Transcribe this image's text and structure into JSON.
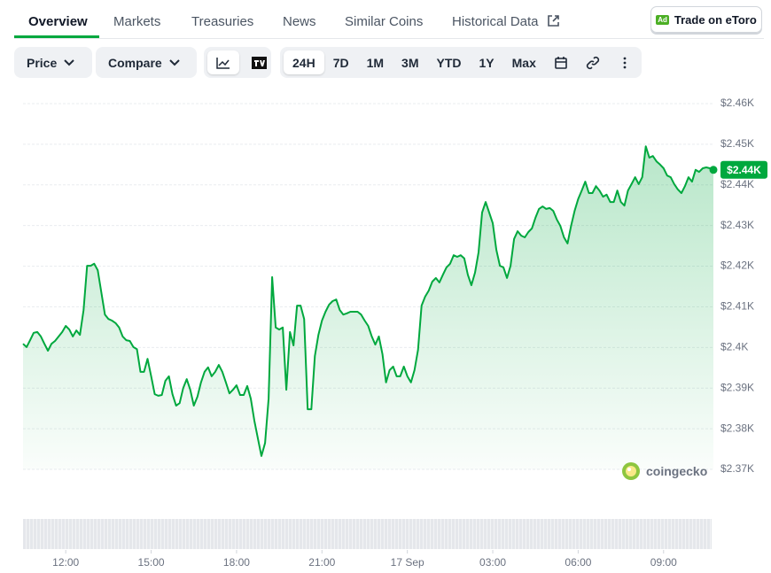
{
  "tabs": [
    "Overview",
    "Markets",
    "Treasuries",
    "News",
    "Similar Coins",
    "Historical Data"
  ],
  "ad_button": {
    "badge": "Ad",
    "label": "Trade on eToro"
  },
  "toolbar": {
    "price": "Price",
    "compare": "Compare",
    "ranges": [
      "24H",
      "7D",
      "1M",
      "3M",
      "YTD",
      "1Y",
      "Max"
    ]
  },
  "watermark": "coingecko",
  "chart_data": {
    "type": "area",
    "color": "#00a83e",
    "grid": true,
    "current_label": "$2.44K",
    "xlim": [
      10.5,
      34.75
    ],
    "xticks": [
      {
        "value": 12,
        "label": "12:00"
      },
      {
        "value": 15,
        "label": "15:00"
      },
      {
        "value": 18,
        "label": "18:00"
      },
      {
        "value": 21,
        "label": "21:00"
      },
      {
        "value": 24,
        "label": "17 Sep"
      },
      {
        "value": 27,
        "label": "03:00"
      },
      {
        "value": 30,
        "label": "06:00"
      },
      {
        "value": 33,
        "label": "09:00"
      }
    ],
    "ylim": [
      2370,
      2460
    ],
    "yticks": [
      {
        "value": 2370,
        "label": "$2.37K"
      },
      {
        "value": 2380,
        "label": "$2.38K"
      },
      {
        "value": 2390,
        "label": "$2.39K"
      },
      {
        "value": 2400,
        "label": "$2.4K"
      },
      {
        "value": 2410,
        "label": "$2.41K"
      },
      {
        "value": 2420,
        "label": "$2.42K"
      },
      {
        "value": 2430,
        "label": "$2.43K"
      },
      {
        "value": 2440,
        "label": "$2.44K"
      },
      {
        "value": 2450,
        "label": "$2.45K"
      },
      {
        "value": 2460,
        "label": "$2.46K"
      }
    ],
    "x": [
      10.5,
      10.625,
      10.75,
      10.875,
      11,
      11.125,
      11.25,
      11.375,
      11.5,
      11.625,
      11.75,
      11.875,
      12,
      12.125,
      12.25,
      12.375,
      12.5,
      12.625,
      12.75,
      12.875,
      13,
      13.125,
      13.25,
      13.375,
      13.5,
      13.625,
      13.75,
      13.875,
      14,
      14.125,
      14.25,
      14.375,
      14.5,
      14.625,
      14.75,
      14.875,
      15,
      15.125,
      15.25,
      15.375,
      15.5,
      15.625,
      15.75,
      15.875,
      16,
      16.125,
      16.25,
      16.375,
      16.5,
      16.625,
      16.75,
      16.875,
      17,
      17.125,
      17.25,
      17.375,
      17.5,
      17.625,
      17.75,
      17.875,
      18,
      18.125,
      18.25,
      18.375,
      18.5,
      18.625,
      18.75,
      18.875,
      19,
      19.125,
      19.25,
      19.375,
      19.5,
      19.625,
      19.75,
      19.875,
      20,
      20.125,
      20.25,
      20.375,
      20.5,
      20.625,
      20.75,
      20.875,
      21,
      21.125,
      21.25,
      21.375,
      21.5,
      21.625,
      21.75,
      21.875,
      22,
      22.125,
      22.25,
      22.375,
      22.5,
      22.625,
      22.75,
      22.875,
      23,
      23.125,
      23.25,
      23.375,
      23.5,
      23.625,
      23.75,
      23.875,
      24,
      24.125,
      24.25,
      24.375,
      24.5,
      24.625,
      24.75,
      24.875,
      25,
      25.125,
      25.25,
      25.375,
      25.5,
      25.625,
      25.75,
      25.875,
      26,
      26.125,
      26.25,
      26.375,
      26.5,
      26.625,
      26.75,
      26.875,
      27,
      27.125,
      27.25,
      27.375,
      27.5,
      27.625,
      27.75,
      27.875,
      28,
      28.125,
      28.25,
      28.375,
      28.5,
      28.625,
      28.75,
      28.875,
      29,
      29.125,
      29.25,
      29.375,
      29.5,
      29.625,
      29.75,
      29.875,
      30,
      30.125,
      30.25,
      30.375,
      30.5,
      30.625,
      30.75,
      30.875,
      31,
      31.125,
      31.25,
      31.375,
      31.5,
      31.625,
      31.75,
      31.875,
      32,
      32.125,
      32.25,
      32.375,
      32.5,
      32.625,
      32.75,
      32.875,
      33,
      33.125,
      33.25,
      33.375,
      33.5,
      33.625,
      33.75,
      33.875,
      34,
      34.125,
      34.25,
      34.375,
      34.5,
      34.625,
      34.75
    ],
    "values": [
      2400.9,
      2400.1,
      2401.8,
      2403.6,
      2403.8,
      2402.7,
      2400.9,
      2399.2,
      2400.9,
      2401.6,
      2402.7,
      2403.8,
      2405.3,
      2404.4,
      2402.7,
      2404.2,
      2403.1,
      2409.2,
      2420.1,
      2420.1,
      2420.6,
      2419.0,
      2413.6,
      2408.1,
      2407.0,
      2406.6,
      2406.0,
      2404.9,
      2402.7,
      2401.8,
      2401.6,
      2400.1,
      2399.6,
      2394.0,
      2394.0,
      2397.2,
      2392.9,
      2388.5,
      2388.1,
      2388.3,
      2391.8,
      2392.9,
      2388.5,
      2385.7,
      2386.3,
      2390.0,
      2392.2,
      2389.6,
      2385.7,
      2387.9,
      2391.4,
      2394.0,
      2395.1,
      2392.9,
      2394.0,
      2395.7,
      2394.0,
      2391.4,
      2388.7,
      2389.6,
      2390.7,
      2388.3,
      2388.3,
      2390.5,
      2387.4,
      2382.0,
      2377.6,
      2373.3,
      2376.5,
      2387.4,
      2417.3,
      2404.9,
      2404.4,
      2404.9,
      2389.6,
      2403.8,
      2400.5,
      2410.3,
      2410.3,
      2407.0,
      2384.8,
      2384.8,
      2397.9,
      2403.1,
      2406.6,
      2408.8,
      2410.5,
      2411.4,
      2411.8,
      2409.2,
      2408.1,
      2408.4,
      2408.8,
      2408.8,
      2408.8,
      2408.1,
      2406.6,
      2405.3,
      2402.7,
      2400.7,
      2402.7,
      2398.3,
      2391.4,
      2394.4,
      2395.3,
      2392.9,
      2392.9,
      2395.3,
      2392.9,
      2391.4,
      2394.4,
      2399.4,
      2410.3,
      2412.5,
      2414.0,
      2416.2,
      2417.1,
      2416.0,
      2417.9,
      2419.7,
      2420.6,
      2422.7,
      2422.3,
      2422.7,
      2421.9,
      2417.9,
      2415.3,
      2418.4,
      2423.4,
      2433.2,
      2435.8,
      2433.2,
      2430.6,
      2424.0,
      2420.1,
      2419.7,
      2417.1,
      2420.1,
      2426.7,
      2428.6,
      2427.5,
      2427.1,
      2428.4,
      2429.3,
      2431.9,
      2434.1,
      2434.7,
      2434.1,
      2434.3,
      2433.6,
      2431.5,
      2429.9,
      2427.1,
      2425.6,
      2429.9,
      2433.6,
      2436.5,
      2438.6,
      2440.8,
      2438.0,
      2438.0,
      2439.7,
      2438.6,
      2437.1,
      2437.6,
      2435.8,
      2435.8,
      2438.6,
      2435.8,
      2434.9,
      2438.6,
      2440.2,
      2441.9,
      2440.2,
      2441.9,
      2449.5,
      2446.7,
      2447.1,
      2445.8,
      2445.0,
      2444.1,
      2442.3,
      2441.9,
      2440.2,
      2438.9,
      2438.0,
      2439.7,
      2441.9,
      2440.8,
      2443.7,
      2443.2,
      2444.1,
      2444.3,
      2444.1,
      2443.7
    ]
  }
}
